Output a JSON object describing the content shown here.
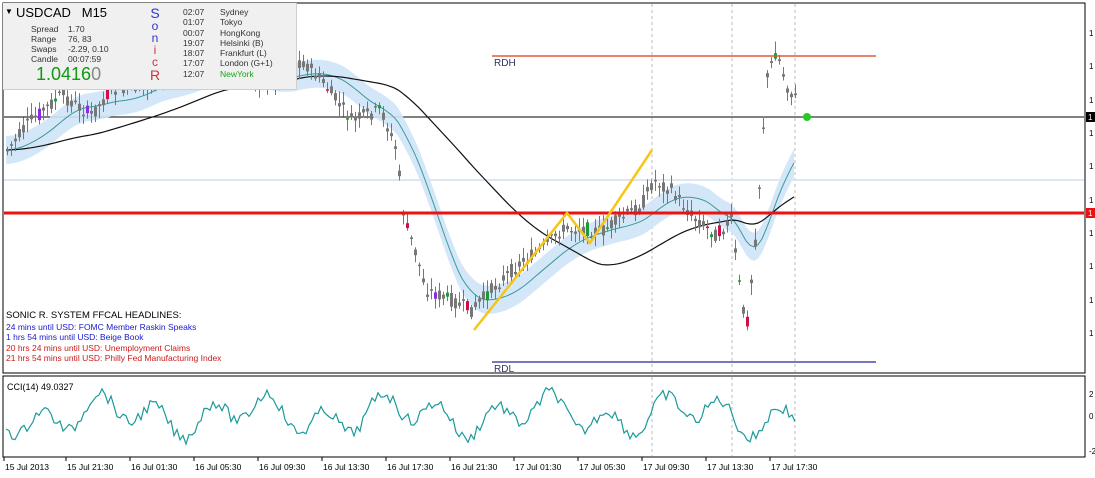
{
  "info_panel": {
    "symbol": "USDCAD",
    "timeframe": "M15",
    "spread_label": "Spread",
    "spread_value": "1.70",
    "range_label": "Range",
    "range_value": "76, 83",
    "swaps_label": "Swaps",
    "swaps_value": "-2.29, 0.10",
    "candle_label": "Candle",
    "candle_value": "00:07:59",
    "price_main": "1.0416",
    "price_last_digit": "0",
    "sonic_letters": [
      "S",
      "o",
      "n",
      "i",
      "c",
      "R"
    ],
    "sessions": [
      {
        "time": "02:07",
        "name": "Sydney"
      },
      {
        "time": "01:07",
        "name": "Tokyo"
      },
      {
        "time": "00:07",
        "name": "HongKong"
      },
      {
        "time": "19:07",
        "name": "Helsinki  (B)"
      },
      {
        "time": "18:07",
        "name": "Frankfurt  (L)"
      },
      {
        "time": "17:07",
        "name": "London  (G+1)"
      },
      {
        "time": "12:07",
        "name": "NewYork"
      }
    ]
  },
  "headlines": {
    "title": "SONIC R. SYSTEM  FFCAL HEADLINES:",
    "items": [
      {
        "text": "24 mins until USD: FOMC Member Raskin Speaks",
        "color": "#1a1acc"
      },
      {
        "text": "1 hrs 54 mins until USD: Beige Book",
        "color": "#1a1acc"
      },
      {
        "text": "20 hrs 24 mins until USD: Unemployment Claims",
        "color": "#cc1a1a"
      },
      {
        "text": "21 hrs 54 mins until USD: Philly Fed Manufacturing Index",
        "color": "#cc1a1a"
      }
    ]
  },
  "levels": {
    "rdh_label": "RDH",
    "rdl_label": "RDL"
  },
  "cci": {
    "label": "CCI(14) 49.0327"
  },
  "colors": {
    "rdh": "#e05a3a",
    "rdl": "#4a4aaa",
    "support": "#ee1111",
    "band": "#cfe4f7",
    "zigzag": "#f5c518",
    "candle": "#777777",
    "bull_green": "#1a9a3a",
    "bear_red": "#cc1144",
    "purple": "#8a2be2",
    "green_dot": "#22cc22"
  },
  "chart_data": {
    "type": "candlestick",
    "x_tick_labels": [
      "15 Jul 2013",
      "15 Jul 21:30",
      "16 Jul 01:30",
      "16 Jul 05:30",
      "16 Jul 09:30",
      "16 Jul 13:30",
      "16 Jul 17:30",
      "16 Jul 21:30",
      "17 Jul 01:30",
      "17 Jul 05:30",
      "17 Jul 09:30",
      "17 Jul 13:30",
      "17 Jul 17:30"
    ],
    "y_tick_labels": [
      "1",
      "1",
      "1",
      "1",
      "1",
      "1",
      "1",
      "1",
      "1",
      "1"
    ],
    "cci_y_tick_labels": [
      "2",
      "0",
      "-2"
    ],
    "price_label": "1",
    "support_label": "1"
  }
}
